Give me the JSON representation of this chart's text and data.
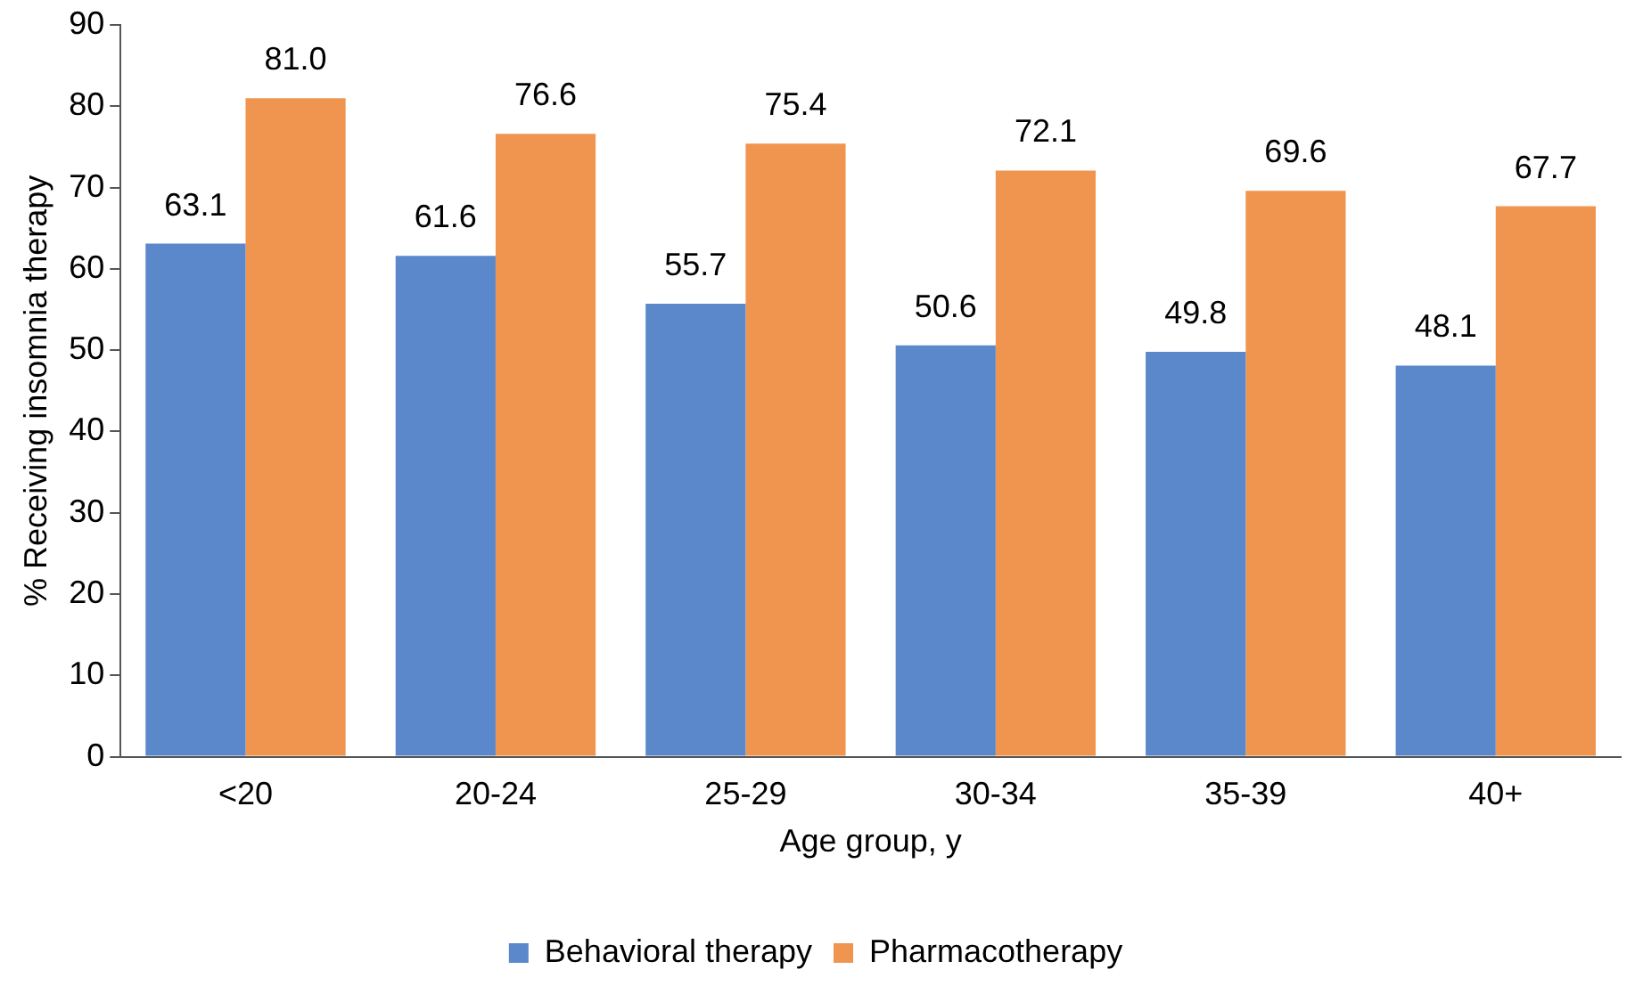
{
  "chart_data": {
    "type": "bar",
    "xlabel": "Age group, y",
    "ylabel": "% Receiving insomnia therapy",
    "categories": [
      "<20",
      "20-24",
      "25-29",
      "30-34",
      "35-39",
      "40+"
    ],
    "series": [
      {
        "name": "Behavioral therapy",
        "color": "#5b87cb",
        "values": [
          63.1,
          61.6,
          55.7,
          50.6,
          49.8,
          48.1
        ],
        "value_labels": [
          "63.1",
          "61.6",
          "55.7",
          "50.6",
          "49.8",
          "48.1"
        ]
      },
      {
        "name": "Pharmacotherapy",
        "color": "#f0954f",
        "values": [
          81.0,
          76.6,
          75.4,
          72.1,
          69.6,
          67.7
        ],
        "value_labels": [
          "81.0",
          "76.6",
          "75.4",
          "72.1",
          "69.6",
          "67.7"
        ]
      }
    ],
    "ylim": [
      0,
      90
    ],
    "yticks": [
      0,
      10,
      20,
      30,
      40,
      50,
      60,
      70,
      80,
      90
    ],
    "grid": false,
    "legend": "bottom"
  }
}
